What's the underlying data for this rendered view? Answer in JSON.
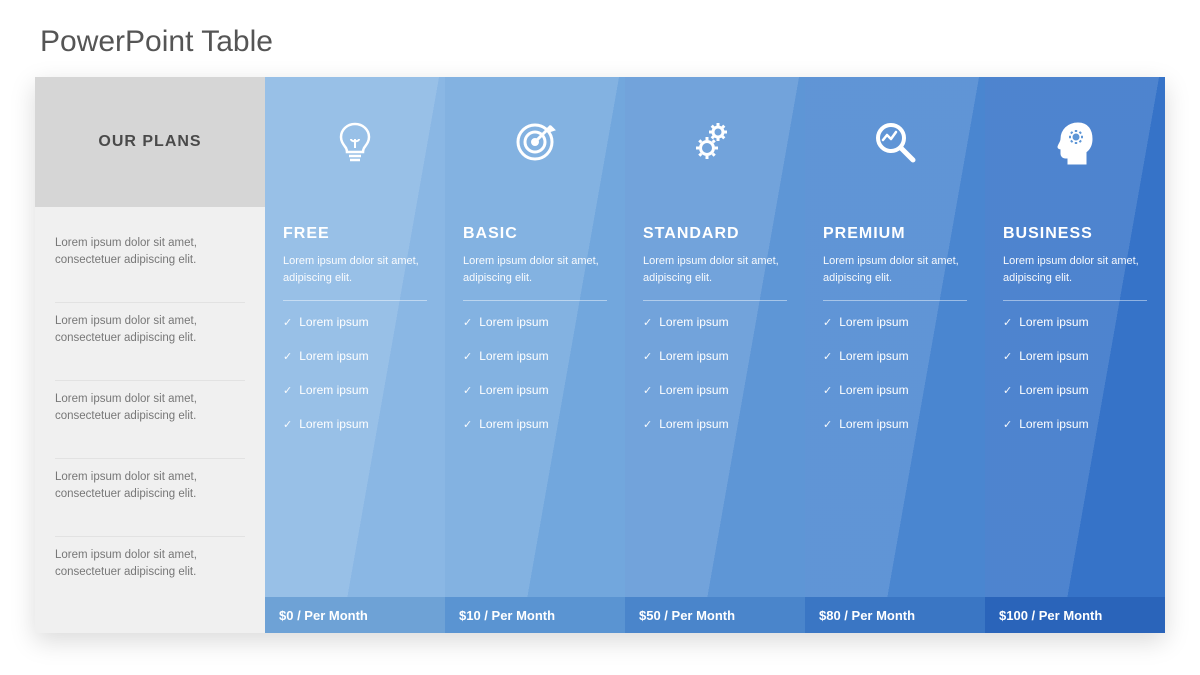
{
  "title": "PowerPoint Table",
  "labelColumn": {
    "header": "OUR PLANS",
    "header_bg": "#d6d6d6",
    "body_bg": "#f0f0f0",
    "rows": [
      "Lorem ipsum dolor sit amet, consectetuer adipiscing elit.",
      "Lorem ipsum dolor sit amet, consectetuer adipiscing elit.",
      "Lorem ipsum dolor sit amet, consectetuer adipiscing elit.",
      "Lorem ipsum dolor sit amet, consectetuer adipiscing elit.",
      "Lorem ipsum dolor sit amet, consectetuer adipiscing elit."
    ]
  },
  "plans": [
    {
      "name": "FREE",
      "icon": "lightbulb",
      "desc": "Lorem ipsum dolor sit amet, adipiscing elit.",
      "features": [
        "Lorem ipsum",
        "Lorem ipsum",
        "Lorem ipsum",
        "Lorem ipsum"
      ],
      "price": "$0 / Per Month",
      "bg": "#8ab7e4",
      "foot_bg": "#6ea2d6"
    },
    {
      "name": "BASIC",
      "icon": "target",
      "desc": "Lorem ipsum dolor sit amet, adipiscing elit.",
      "features": [
        "Lorem ipsum",
        "Lorem ipsum",
        "Lorem ipsum",
        "Lorem ipsum"
      ],
      "price": "$10 / Per Month",
      "bg": "#72a7dd",
      "foot_bg": "#5a94d2"
    },
    {
      "name": "STANDARD",
      "icon": "gears",
      "desc": "Lorem ipsum dolor sit amet, adipiscing elit.",
      "features": [
        "Lorem ipsum",
        "Lorem ipsum",
        "Lorem ipsum",
        "Lorem ipsum"
      ],
      "price": "$50 / Per Month",
      "bg": "#5e96d6",
      "foot_bg": "#4a85cb"
    },
    {
      "name": "PREMIUM",
      "icon": "analytics",
      "desc": "Lorem ipsum dolor sit amet, adipiscing elit.",
      "features": [
        "Lorem ipsum",
        "Lorem ipsum",
        "Lorem ipsum",
        "Lorem ipsum"
      ],
      "price": "$80 / Per Month",
      "bg": "#4a86d0",
      "foot_bg": "#3a76c4"
    },
    {
      "name": "BUSINESS",
      "icon": "head-gears",
      "desc": "Lorem ipsum dolor sit amet, adipiscing elit.",
      "features": [
        "Lorem ipsum",
        "Lorem ipsum",
        "Lorem ipsum",
        "Lorem ipsum"
      ],
      "price": "$100 / Per Month",
      "bg": "#3673c8",
      "foot_bg": "#2a64ba"
    }
  ],
  "style": {
    "icon_color": "#ffffff",
    "plan_name_fontsize": 16,
    "feature_check": "✓"
  }
}
